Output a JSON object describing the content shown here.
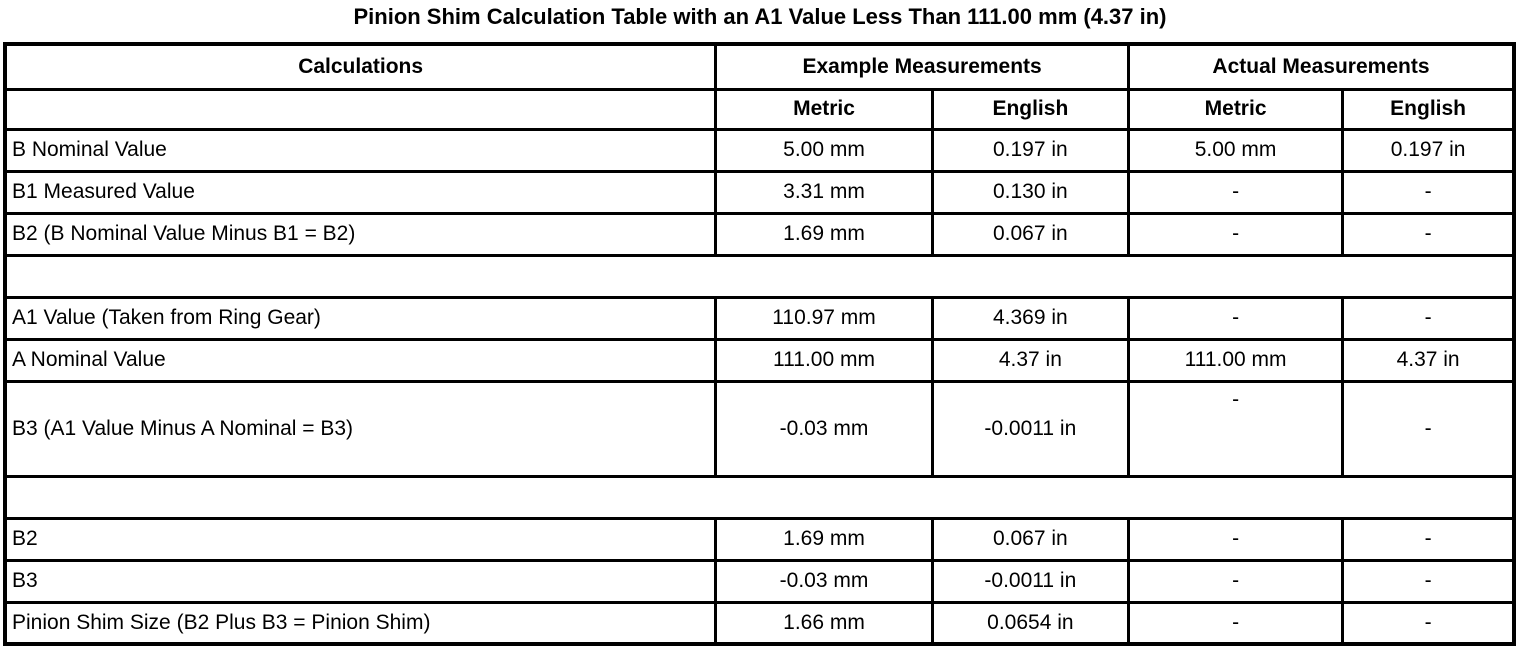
{
  "title": "Pinion Shim Calculation Table with an A1 Value Less Than 111.00 mm (4.37 in)",
  "table": {
    "header": {
      "calculations": "Calculations",
      "example_group": "Example Measurements",
      "actual_group": "Actual Measurements",
      "metric": "Metric",
      "english": "English"
    },
    "rows": [
      {
        "type": "data",
        "label": "B Nominal Value",
        "ex_metric": "5.00 mm",
        "ex_english": "0.197 in",
        "act_metric": "5.00 mm",
        "act_english": "0.197 in"
      },
      {
        "type": "data",
        "label": "B1 Measured Value",
        "ex_metric": "3.31 mm",
        "ex_english": "0.130 in",
        "act_metric": "-",
        "act_english": "-"
      },
      {
        "type": "data",
        "label": "B2 (B Nominal Value Minus B1 = B2)",
        "ex_metric": "1.69 mm",
        "ex_english": "0.067 in",
        "act_metric": "-",
        "act_english": "-"
      },
      {
        "type": "spacer"
      },
      {
        "type": "data",
        "label": "A1 Value (Taken from Ring Gear)",
        "ex_metric": "110.97 mm",
        "ex_english": "4.369 in",
        "act_metric": "-",
        "act_english": "-"
      },
      {
        "type": "data",
        "label": "A Nominal Value",
        "ex_metric": "111.00 mm",
        "ex_english": "4.37 in",
        "act_metric": "111.00 mm",
        "act_english": "4.37 in"
      },
      {
        "type": "data",
        "tall": true,
        "act_metric_top": true,
        "label": "B3 (A1 Value Minus A Nominal = B3)",
        "ex_metric": "-0.03 mm",
        "ex_english": "-0.0011 in",
        "act_metric": "-",
        "act_english": "-"
      },
      {
        "type": "spacer"
      },
      {
        "type": "data",
        "label": "B2",
        "ex_metric": "1.69 mm",
        "ex_english": "0.067 in",
        "act_metric": "-",
        "act_english": "-"
      },
      {
        "type": "data",
        "label": "B3",
        "ex_metric": "-0.03 mm",
        "ex_english": "-0.0011 in",
        "act_metric": "-",
        "act_english": "-"
      },
      {
        "type": "data",
        "label": "Pinion Shim Size (B2 Plus B3 = Pinion Shim)",
        "ex_metric": "1.66 mm",
        "ex_english": "0.0654 in",
        "act_metric": "-",
        "act_english": "-"
      }
    ]
  }
}
